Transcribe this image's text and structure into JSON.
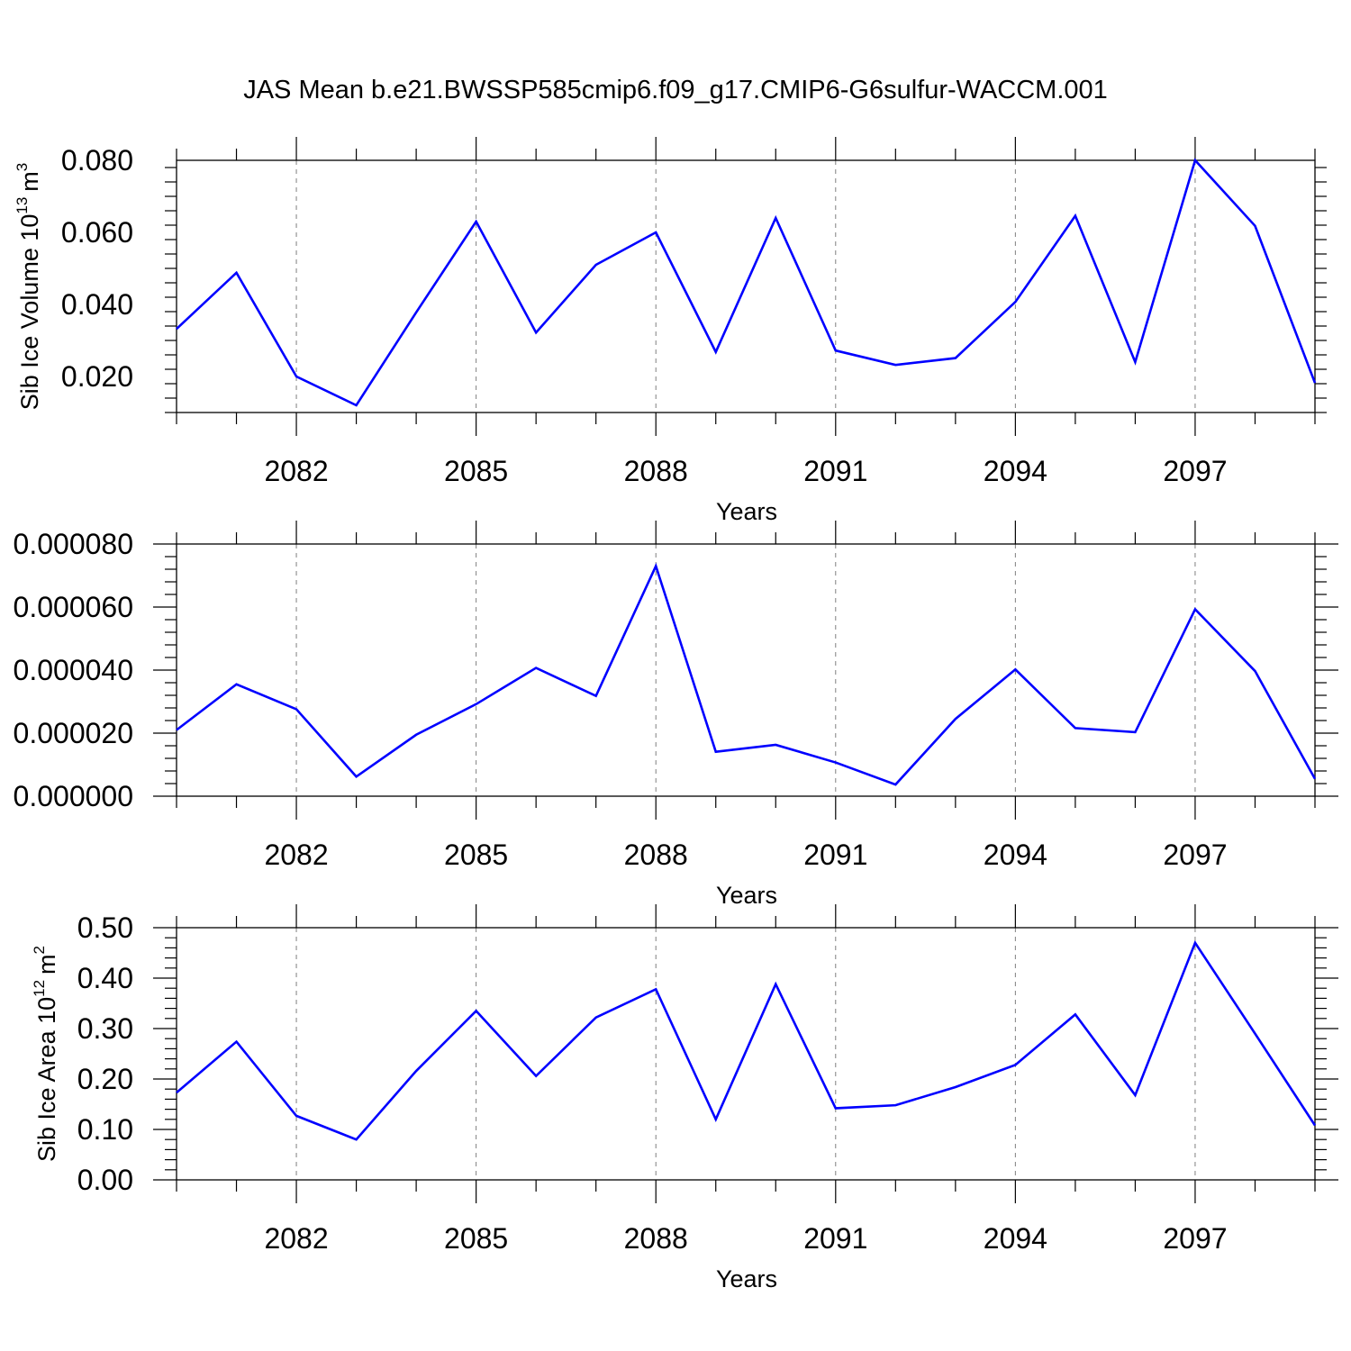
{
  "title": "JAS Mean b.e21.BWSSP585cmip6.f09_g17.CMIP6-G6sulfur-WACCM.001",
  "colors": {
    "line": "#0000ff",
    "frame": "#000000",
    "grid": "#7f7f7f"
  },
  "chart_data": [
    {
      "type": "line",
      "title": "",
      "xlabel": "Years",
      "ylabel": "Sib Ice Volume 10",
      "ylabel_sup": "13",
      "ylabel_unit": "m",
      "ylabel_unit_sup": "3",
      "xlim": [
        2080,
        2099
      ],
      "ylim": [
        0.01,
        0.08
      ],
      "yticks": [
        0.02,
        0.04,
        0.06,
        0.08
      ],
      "ytick_labels": [
        "0.020",
        "0.040",
        "0.060",
        "0.080"
      ],
      "xticks": [
        2082,
        2085,
        2088,
        2091,
        2094,
        2097
      ],
      "xtick_labels": [
        "2082",
        "2085",
        "2088",
        "2091",
        "2094",
        "2097"
      ],
      "grid": "vertical dashed at labeled years",
      "x": [
        2080,
        2081,
        2082,
        2083,
        2084,
        2085,
        2086,
        2087,
        2088,
        2089,
        2090,
        2091,
        2092,
        2093,
        2094,
        2095,
        2096,
        2097,
        2098,
        2099
      ],
      "values": [
        0.0332,
        0.0488,
        0.02,
        0.012,
        0.0378,
        0.063,
        0.0322,
        0.051,
        0.06,
        0.0268,
        0.064,
        0.0272,
        0.0232,
        0.0251,
        0.0407,
        0.0646,
        0.024,
        0.08,
        0.0618,
        0.0182
      ]
    },
    {
      "type": "line",
      "title": "",
      "xlabel": "Years",
      "ylabel": "",
      "xlim": [
        2080,
        2099
      ],
      "ylim": [
        0.0,
        8e-05
      ],
      "yticks": [
        0.0,
        2e-05,
        4e-05,
        6e-05,
        8e-05
      ],
      "ytick_labels": [
        "0.000000",
        "0.000020",
        "0.000040",
        "0.000060",
        "0.000080"
      ],
      "xticks": [
        2082,
        2085,
        2088,
        2091,
        2094,
        2097
      ],
      "xtick_labels": [
        "2082",
        "2085",
        "2088",
        "2091",
        "2094",
        "2097"
      ],
      "grid": "vertical dashed at labeled years",
      "x": [
        2080,
        2081,
        2082,
        2083,
        2084,
        2085,
        2086,
        2087,
        2088,
        2089,
        2090,
        2091,
        2092,
        2093,
        2094,
        2095,
        2096,
        2097,
        2098,
        2099
      ],
      "values": [
        2.1e-05,
        3.55e-05,
        2.76e-05,
        6.2e-06,
        1.95e-05,
        2.92e-05,
        4.07e-05,
        3.18e-05,
        7.3e-05,
        1.41e-05,
        1.63e-05,
        1.07e-05,
        3.7e-06,
        2.45e-05,
        4.02e-05,
        2.16e-05,
        2.03e-05,
        5.93e-05,
        3.97e-05,
        5.5e-06
      ]
    },
    {
      "type": "line",
      "title": "",
      "xlabel": "Years",
      "ylabel": "Sib Ice Area 10",
      "ylabel_sup": "12",
      "ylabel_unit": "m",
      "ylabel_unit_sup": "2",
      "xlim": [
        2080,
        2099
      ],
      "ylim": [
        0.0,
        0.5
      ],
      "yticks": [
        0.0,
        0.1,
        0.2,
        0.3,
        0.4,
        0.5
      ],
      "ytick_labels": [
        "0.00",
        "0.10",
        "0.20",
        "0.30",
        "0.40",
        "0.50"
      ],
      "xticks": [
        2082,
        2085,
        2088,
        2091,
        2094,
        2097
      ],
      "xtick_labels": [
        "2082",
        "2085",
        "2088",
        "2091",
        "2094",
        "2097"
      ],
      "grid": "vertical dashed at labeled years",
      "x": [
        2080,
        2081,
        2082,
        2083,
        2084,
        2085,
        2086,
        2087,
        2088,
        2089,
        2090,
        2091,
        2092,
        2093,
        2094,
        2095,
        2096,
        2097,
        2098,
        2099
      ],
      "values": [
        0.173,
        0.274,
        0.127,
        0.08,
        0.216,
        0.335,
        0.206,
        0.322,
        0.378,
        0.12,
        0.388,
        0.142,
        0.148,
        0.184,
        0.228,
        0.328,
        0.168,
        0.47,
        0.29,
        0.108
      ]
    }
  ]
}
